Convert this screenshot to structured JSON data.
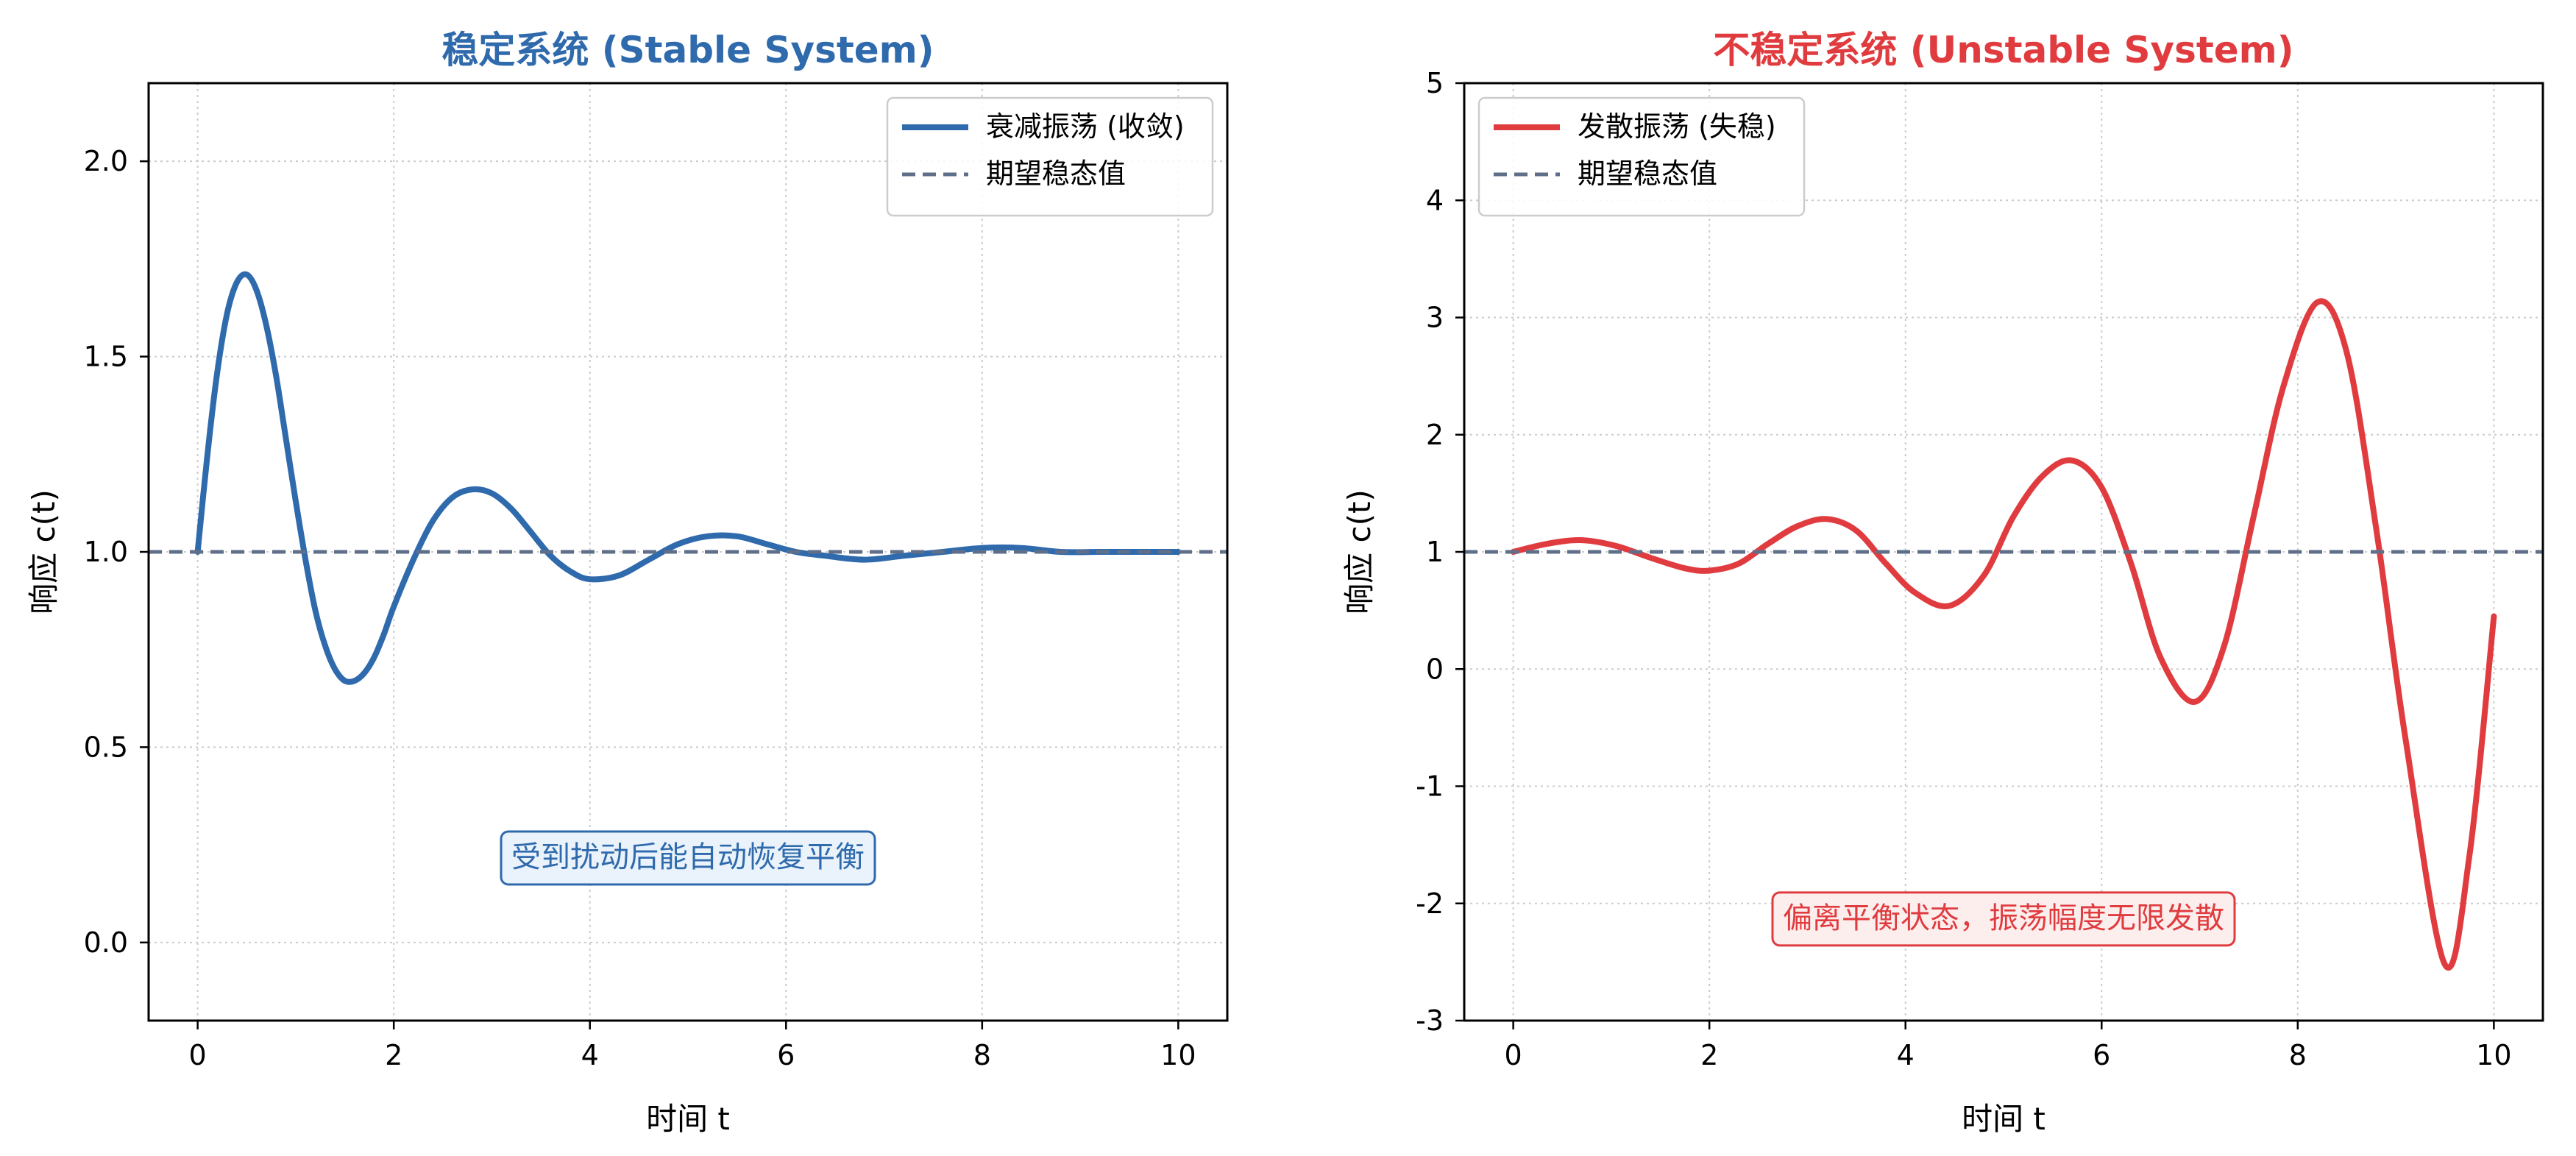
{
  "chart_data": [
    {
      "type": "line",
      "title": "稳定系统 (Stable System)",
      "title_color": "#2f6aac",
      "xlabel": "时间 t",
      "ylabel": "响应 c(t)",
      "xlim": [
        -0.5,
        10.5
      ],
      "ylim": [
        -0.2,
        2.2
      ],
      "xticks": [
        0,
        2,
        4,
        6,
        8,
        10
      ],
      "xtick_labels": [
        "0",
        "2",
        "4",
        "6",
        "8",
        "10"
      ],
      "yticks": [
        0.0,
        0.5,
        1.0,
        1.5,
        2.0
      ],
      "ytick_labels": [
        "0.0",
        "0.5",
        "1.0",
        "1.5",
        "2.0"
      ],
      "grid": true,
      "legend_position": "top-right",
      "series": [
        {
          "name": "衰减振荡 (收敛)",
          "color": "#2f6aac",
          "style": "solid",
          "x": [
            0,
            0.1,
            0.2,
            0.3,
            0.4,
            0.5,
            0.6,
            0.7,
            0.8,
            0.9,
            1.0,
            1.1,
            1.2,
            1.3,
            1.4,
            1.5,
            1.6,
            1.7,
            1.8,
            1.9,
            2.0,
            2.2,
            2.4,
            2.6,
            2.8,
            3.0,
            3.2,
            3.4,
            3.6,
            3.8,
            4.0,
            4.3,
            4.6,
            4.9,
            5.2,
            5.5,
            5.8,
            6.1,
            6.4,
            6.8,
            7.2,
            7.6,
            8.0,
            8.4,
            8.8,
            9.2,
            9.6,
            10.0
          ],
          "y": [
            1.0,
            1.25,
            1.46,
            1.61,
            1.69,
            1.71,
            1.67,
            1.58,
            1.45,
            1.29,
            1.13,
            0.98,
            0.85,
            0.76,
            0.7,
            0.67,
            0.67,
            0.69,
            0.73,
            0.79,
            0.86,
            0.98,
            1.08,
            1.14,
            1.16,
            1.15,
            1.11,
            1.05,
            0.99,
            0.95,
            0.93,
            0.94,
            0.98,
            1.02,
            1.04,
            1.04,
            1.02,
            1.0,
            0.99,
            0.98,
            0.99,
            1.0,
            1.01,
            1.01,
            1.0,
            1.0,
            1.0,
            1.0
          ]
        },
        {
          "name": "期望稳态值",
          "color": "#5f6f8a",
          "style": "dashed",
          "x": [
            -0.5,
            10.5
          ],
          "y": [
            1.0,
            1.0
          ]
        }
      ],
      "annotation": {
        "text": "受到扰动后能自动恢复平衡",
        "x": 5.0,
        "y": 0.22,
        "color": "#2f6aac",
        "bg": "#eaf3fb"
      }
    },
    {
      "type": "line",
      "title": "不稳定系统 (Unstable System)",
      "title_color": "#e03c3f",
      "xlabel": "时间 t",
      "ylabel": "响应 c(t)",
      "xlim": [
        -0.5,
        10.5
      ],
      "ylim": [
        -3,
        5
      ],
      "xticks": [
        0,
        2,
        4,
        6,
        8,
        10
      ],
      "xtick_labels": [
        "0",
        "2",
        "4",
        "6",
        "8",
        "10"
      ],
      "yticks": [
        -3,
        -2,
        -1,
        0,
        1,
        2,
        3,
        4,
        5
      ],
      "ytick_labels": [
        "-3",
        "-2",
        "-1",
        "0",
        "1",
        "2",
        "3",
        "4",
        "5"
      ],
      "grid": true,
      "legend_position": "top-left",
      "series": [
        {
          "name": "发散振荡 (失稳)",
          "color": "#e03c3f",
          "style": "solid",
          "x": [
            0,
            0.35,
            0.7,
            1.05,
            1.4,
            1.75,
            2.0,
            2.3,
            2.6,
            2.9,
            3.2,
            3.5,
            3.8,
            4.1,
            4.45,
            4.8,
            5.1,
            5.4,
            5.7,
            6.0,
            6.3,
            6.6,
            6.95,
            7.25,
            7.55,
            7.85,
            8.2,
            8.5,
            8.8,
            9.1,
            9.5,
            9.75,
            10.0
          ],
          "y": [
            1.0,
            1.07,
            1.1,
            1.05,
            0.95,
            0.86,
            0.84,
            0.9,
            1.07,
            1.22,
            1.28,
            1.18,
            0.9,
            0.65,
            0.54,
            0.8,
            1.3,
            1.65,
            1.78,
            1.55,
            0.9,
            0.1,
            -0.28,
            0.2,
            1.3,
            2.4,
            3.13,
            2.7,
            1.2,
            -0.6,
            -2.52,
            -1.6,
            0.45
          ]
        },
        {
          "name": "期望稳态值",
          "color": "#5f6f8a",
          "style": "dashed",
          "x": [
            -0.5,
            10.5
          ],
          "y": [
            1.0,
            1.0
          ]
        }
      ],
      "annotation": {
        "text": "偏离平衡状态，振荡幅度无限发散",
        "x": 5.0,
        "y": -2.12,
        "color": "#e03c3f",
        "bg": "#fdeeee"
      }
    }
  ]
}
